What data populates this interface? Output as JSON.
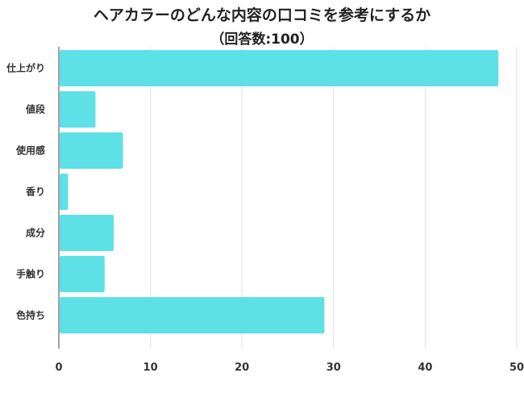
{
  "chart_data": {
    "type": "bar",
    "orientation": "horizontal",
    "title": "ヘアカラーのどんな内容の口コミを参考にするか",
    "subtitle": "（回答数:100）",
    "categories": [
      "仕上がり",
      "値段",
      "使用感",
      "香り",
      "成分",
      "手触り",
      "色持ち"
    ],
    "values": [
      48,
      4,
      7,
      1,
      6,
      5,
      29
    ],
    "xlim": [
      0,
      50
    ],
    "xticks": [
      "0",
      "10",
      "20",
      "30",
      "40",
      "50"
    ],
    "grid": true,
    "bar_color": "#5de0e6"
  }
}
